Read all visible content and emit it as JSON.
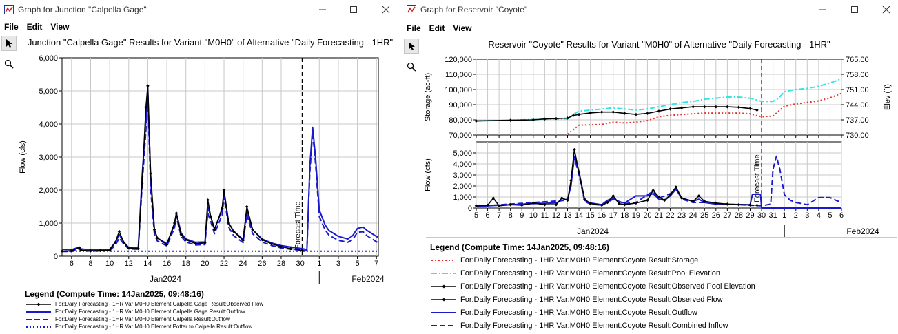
{
  "windows": {
    "junction": {
      "title": "Graph for Junction \"Calpella Gage\"",
      "menu": [
        "File",
        "Edit",
        "View"
      ],
      "chart_title": "Junction \"Calpella Gage\" Results for Variant \"M0H0\" of Alternative \"Daily Forecasting - 1HR\"",
      "legend_title": "Legend (Compute Time: 14Jan2025, 09:48:16)",
      "legend": [
        {
          "label": "For:Daily Forecasting - 1HR Var:M0H0 Element:Calpella Gage Result:Observed Flow",
          "style": "black-marker"
        },
        {
          "label": "For:Daily Forecasting - 1HR Var:M0H0 Element:Calpella Gage Result:Outflow",
          "style": "blue-solid"
        },
        {
          "label": "For:Daily Forecasting - 1HR Var:M0H0 Element:Calpella Result:Outflow",
          "style": "blue-dash"
        },
        {
          "label": "For:Daily Forecasting - 1HR Var:M0H0 Element:Potter to Calpella Result:Outflow",
          "style": "blue-dot"
        }
      ]
    },
    "reservoir": {
      "title": "Graph for Reservoir \"Coyote\"",
      "menu": [
        "File",
        "Edit",
        "View"
      ],
      "chart_title": "Reservoir \"Coyote\" Results for Variant \"M0H0\" of Alternative \"Daily Forecasting - 1HR\"",
      "legend_title": "Legend (Compute Time: 14Jan2025, 09:48:16)",
      "legend": [
        {
          "label": "For:Daily Forecasting - 1HR Var:M0H0 Element:Coyote Result:Storage",
          "style": "red-dot"
        },
        {
          "label": "For:Daily Forecasting - 1HR Var:M0H0 Element:Coyote Result:Pool Elevation",
          "style": "cyan-dashdot"
        },
        {
          "label": "For:Daily Forecasting - 1HR Var:M0H0 Element:Coyote Result:Observed Pool Elevation",
          "style": "black-marker"
        },
        {
          "label": "For:Daily Forecasting - 1HR Var:M0H0 Element:Coyote Result:Observed Flow",
          "style": "black-marker"
        },
        {
          "label": "For:Daily Forecasting - 1HR Var:M0H0 Element:Coyote Result:Outflow",
          "style": "blue-solid"
        },
        {
          "label": "For:Daily Forecasting - 1HR Var:M0H0 Element:Coyote Result:Combined Inflow",
          "style": "blue-dash"
        }
      ]
    }
  },
  "colors": {
    "observed": "#000000",
    "blue": "#1a1acc",
    "storage": "#e8302a",
    "pool": "#2ee6e6",
    "grid": "#c8c8c8"
  },
  "chart_data": [
    {
      "type": "line",
      "ylabel": "Flow (cfs)",
      "ylim": [
        0,
        6000
      ],
      "y_ticks": [
        "0",
        "1,000",
        "2,000",
        "3,000",
        "4,000",
        "5,000",
        "6,000"
      ],
      "x_ticks": [
        "6",
        "8",
        "10",
        "12",
        "14",
        "16",
        "18",
        "20",
        "22",
        "24",
        "26",
        "28",
        "30",
        "1",
        "3",
        "5",
        "7"
      ],
      "x_month_labels": [
        "Jan2024",
        "Feb2024"
      ],
      "x_range_days": [
        5,
        38.2
      ],
      "forecast_label": "Forecast Time",
      "forecast_day": 30.2,
      "series": [
        {
          "name": "Observed Flow",
          "x": [
            5,
            6,
            6.8,
            7,
            8,
            9,
            10,
            10.6,
            11,
            11.5,
            12,
            13,
            13.4,
            13.8,
            14,
            14.3,
            14.7,
            15,
            16,
            16.8,
            17,
            17.5,
            18,
            19,
            20,
            20.3,
            20.6,
            21,
            21.8,
            22,
            22.5,
            23,
            24,
            24.4,
            25,
            26,
            27,
            28,
            29,
            30.2
          ],
          "y": [
            150,
            160,
            260,
            180,
            160,
            170,
            180,
            420,
            750,
            400,
            250,
            230,
            2200,
            4500,
            5150,
            2500,
            800,
            550,
            350,
            1000,
            1300,
            650,
            500,
            380,
            400,
            1700,
            1200,
            800,
            1450,
            2000,
            1000,
            750,
            480,
            1500,
            800,
            500,
            370,
            290,
            230,
            180
          ]
        },
        {
          "name": "Calpella Gage Outflow",
          "x": [
            5,
            6,
            6.8,
            7,
            8,
            9,
            10,
            10.6,
            11,
            11.5,
            12,
            13,
            13.4,
            13.8,
            14,
            14.3,
            14.7,
            15,
            16,
            16.8,
            17,
            17.5,
            18,
            19,
            20,
            20.3,
            20.6,
            21,
            21.8,
            22,
            22.5,
            23,
            24,
            24.4,
            25,
            26,
            27,
            28,
            29,
            30.2,
            30.7,
            31,
            31.3,
            31.6,
            32,
            32.6,
            33,
            34,
            35,
            35.5,
            36,
            36.6,
            37,
            38.2
          ],
          "y": [
            200,
            200,
            270,
            220,
            190,
            200,
            210,
            420,
            650,
            420,
            260,
            250,
            2400,
            4100,
            5100,
            2300,
            780,
            550,
            380,
            950,
            1300,
            700,
            520,
            420,
            430,
            1500,
            1200,
            820,
            1400,
            1950,
            1000,
            760,
            510,
            1400,
            800,
            520,
            400,
            320,
            280,
            230,
            200,
            2700,
            3900,
            3000,
            1400,
            950,
            780,
            600,
            520,
            620,
            840,
            880,
            780,
            560
          ]
        },
        {
          "name": "Calpella Outflow",
          "x": [
            5,
            6,
            6.8,
            7,
            8,
            9,
            10,
            10.6,
            11,
            11.5,
            12,
            13,
            13.4,
            13.8,
            14,
            14.3,
            14.7,
            15,
            16,
            16.8,
            17,
            17.5,
            18,
            19,
            20,
            20.3,
            20.6,
            21,
            21.8,
            22,
            22.5,
            23,
            24,
            24.4,
            25,
            26,
            27,
            28,
            29,
            30.2,
            30.7,
            31,
            31.3,
            31.6,
            32,
            32.6,
            33,
            34,
            35,
            35.5,
            36,
            36.6,
            37,
            38.2
          ],
          "y": [
            140,
            140,
            220,
            170,
            150,
            160,
            170,
            330,
            550,
            360,
            220,
            210,
            2100,
            3800,
            4900,
            2000,
            650,
            460,
            310,
            850,
            1200,
            600,
            430,
            340,
            350,
            1300,
            1050,
            680,
            1250,
            1800,
            880,
            620,
            410,
            1250,
            680,
            430,
            320,
            250,
            210,
            180,
            160,
            2500,
            3750,
            2800,
            1200,
            800,
            640,
            480,
            420,
            500,
            720,
            740,
            620,
            400
          ]
        },
        {
          "name": "Potter to Calpella Outflow",
          "x": [
            5,
            38.2
          ],
          "y": [
            150,
            150
          ]
        }
      ]
    },
    {
      "type": "line",
      "ylabel": "Storage (ac-ft)",
      "y2label": "Elev (ft)",
      "ylim": [
        70000,
        120000
      ],
      "y2lim": [
        730,
        765
      ],
      "y_ticks": [
        "70,000",
        "80,000",
        "90,000",
        "100,000",
        "110,000",
        "120,000"
      ],
      "y2_ticks": [
        "730.00",
        "737.00",
        "744.00",
        "751.00",
        "758.00",
        "765.00"
      ],
      "x_range_days": [
        5,
        37
      ],
      "forecast_day": 30,
      "series": [
        {
          "name": "Storage",
          "x": [
            13,
            14,
            16,
            17,
            18,
            19,
            20,
            21,
            22,
            23,
            24,
            25,
            26,
            27,
            28,
            29,
            30,
            31,
            32,
            33,
            34,
            35,
            36,
            37
          ],
          "y": [
            70500,
            76500,
            77000,
            78500,
            78000,
            78500,
            79500,
            82000,
            83000,
            83500,
            84000,
            84500,
            84500,
            84500,
            84500,
            84000,
            82000,
            82500,
            89000,
            90500,
            91500,
            92500,
            94500,
            97500
          ]
        },
        {
          "name": "Pool Elevation",
          "x": [
            5,
            13,
            13.5,
            14,
            15,
            16,
            17,
            18,
            19,
            20,
            21,
            22,
            23,
            24,
            25,
            26,
            27,
            28,
            29,
            30,
            31,
            31.5,
            32,
            33,
            34,
            35,
            36,
            37
          ],
          "y": [
            736.5,
            737.5,
            739.5,
            741,
            741.5,
            742,
            742.5,
            742,
            741.5,
            742,
            743,
            744,
            745,
            745.5,
            746.5,
            747,
            747.5,
            747.5,
            747,
            745.5,
            745.5,
            747,
            750,
            751,
            751.5,
            752.5,
            754,
            756
          ]
        },
        {
          "name": "Observed Pool Elevation",
          "x": [
            5,
            8,
            10,
            11,
            12,
            13,
            13.5,
            14,
            15,
            16,
            17,
            18,
            19,
            20,
            21,
            22,
            23,
            24,
            25,
            26,
            27,
            28,
            29,
            29.6
          ],
          "y": [
            736.5,
            736.8,
            737,
            737.4,
            737.6,
            737.8,
            739,
            739.5,
            740.2,
            740.6,
            740.6,
            740,
            739.5,
            740,
            741,
            742,
            742.5,
            743,
            743,
            743,
            743,
            742.8,
            742.2,
            741.5
          ]
        }
      ]
    },
    {
      "type": "line",
      "ylabel": "Flow (cfs)",
      "ylim": [
        0,
        6000
      ],
      "y_ticks": [
        "0",
        "1,000",
        "2,000",
        "3,000",
        "4,000",
        "5,000"
      ],
      "x_ticks": [
        "5",
        "6",
        "7",
        "8",
        "9",
        "10",
        "11",
        "12",
        "13",
        "14",
        "15",
        "16",
        "17",
        "18",
        "19",
        "20",
        "21",
        "22",
        "23",
        "24",
        "25",
        "26",
        "27",
        "28",
        "29",
        "30",
        "31",
        "1",
        "2",
        "3",
        "4",
        "5",
        "6"
      ],
      "x_month_labels": [
        "Jan2024",
        "Feb2024"
      ],
      "x_range_days": [
        5,
        37
      ],
      "forecast_label": "Forecast Time",
      "forecast_day": 30,
      "series": [
        {
          "name": "Observed Flow",
          "x": [
            5,
            6,
            6.5,
            7,
            8,
            9,
            10,
            11,
            12,
            12.5,
            13,
            13.3,
            13.6,
            14,
            14.5,
            15,
            16,
            16.5,
            17,
            17.5,
            18,
            19,
            20,
            20.5,
            21,
            21.5,
            22,
            22.5,
            23,
            24,
            24.5,
            25,
            26,
            27,
            28,
            29,
            29.6
          ],
          "y": [
            200,
            250,
            900,
            200,
            300,
            250,
            450,
            300,
            300,
            900,
            700,
            2500,
            5300,
            3200,
            800,
            400,
            250,
            500,
            1100,
            400,
            300,
            450,
            700,
            1600,
            1000,
            700,
            1200,
            1900,
            900,
            600,
            1100,
            600,
            450,
            350,
            300,
            280,
            250
          ]
        },
        {
          "name": "Outflow",
          "x": [
            5,
            10,
            12,
            12.5,
            13,
            13.3,
            13.6,
            14,
            14.5,
            15,
            16,
            16.5,
            17,
            17.5,
            18,
            19,
            20,
            20.5,
            21,
            21.5,
            22,
            22.5,
            23,
            24,
            24.5,
            25,
            26,
            29,
            29.2,
            29.9,
            30,
            31,
            37
          ],
          "y": [
            150,
            400,
            450,
            700,
            800,
            2000,
            4700,
            3300,
            700,
            450,
            300,
            700,
            900,
            550,
            450,
            1100,
            1100,
            1300,
            800,
            700,
            1100,
            1700,
            900,
            600,
            800,
            500,
            350,
            300,
            1250,
            1250,
            0,
            0,
            0
          ]
        },
        {
          "name": "Combined Inflow",
          "x": [
            5,
            13,
            13.3,
            13.6,
            14,
            14.5,
            15,
            16,
            17,
            18,
            19,
            20,
            20.5,
            21,
            22,
            22.5,
            23,
            24,
            25,
            26,
            27,
            28,
            29,
            30,
            30.8,
            31,
            31.3,
            31.6,
            32,
            32.5,
            33,
            34,
            35,
            36,
            36.5,
            37
          ],
          "y": [
            150,
            700,
            2200,
            4600,
            3000,
            600,
            350,
            250,
            800,
            400,
            500,
            1200,
            1500,
            900,
            1300,
            1800,
            800,
            500,
            500,
            400,
            350,
            300,
            250,
            200,
            350,
            3500,
            4700,
            3500,
            1200,
            700,
            500,
            300,
            950,
            950,
            700,
            500
          ]
        }
      ]
    }
  ]
}
